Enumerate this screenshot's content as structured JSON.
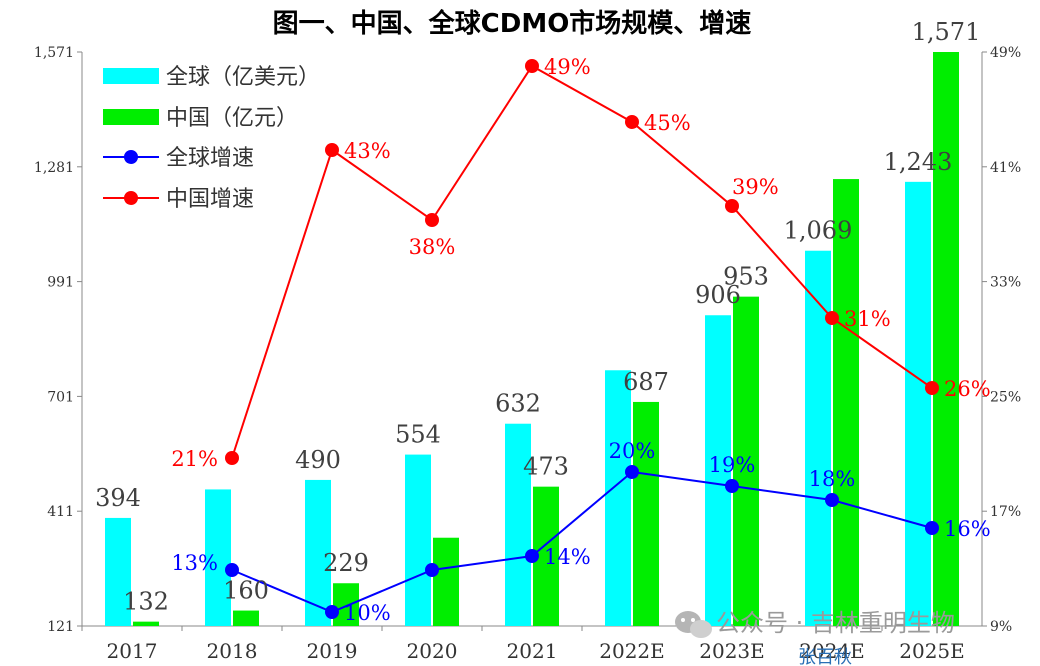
{
  "chart_data": {
    "type": "bar",
    "title": "图一、中国、全球CDMO市场规模、增速",
    "categories": [
      "2017",
      "2018",
      "2019",
      "2020",
      "2021",
      "2022E",
      "2023E",
      "2024E",
      "2025E"
    ],
    "series": [
      {
        "name": "全球（亿美元）",
        "type": "bar",
        "axis": "left",
        "color": "#00FFFF",
        "values": [
          394,
          466,
          490,
          554,
          632,
          767,
          906,
          1069,
          1243
        ],
        "labels": [
          "394",
          "",
          "490",
          "554",
          "632",
          "",
          "906",
          "1,069",
          "1,243"
        ]
      },
      {
        "name": "中国（亿元）",
        "type": "bar",
        "axis": "left",
        "color": "#00EE00",
        "values": [
          132,
          160,
          229,
          344,
          473,
          687,
          953,
          1250,
          1571
        ],
        "labels": [
          "132",
          "160",
          "229",
          "",
          "473",
          "687",
          "953",
          "",
          "1,571"
        ]
      },
      {
        "name": "全球增速",
        "type": "line",
        "axis": "right",
        "color": "#0000FF",
        "values": [
          null,
          13,
          10,
          13,
          14,
          20,
          19,
          18,
          16
        ],
        "labels": [
          "",
          "13%",
          "10%",
          "",
          "14%",
          "20%",
          "19%",
          "18%",
          "16%"
        ]
      },
      {
        "name": "中国增速",
        "type": "line",
        "axis": "right",
        "color": "#FF0000",
        "values": [
          null,
          21,
          43,
          38,
          49,
          45,
          39,
          31,
          26
        ],
        "labels": [
          "",
          "21%",
          "43%",
          "38%",
          "49%",
          "45%",
          "39%",
          "31%",
          "26%"
        ]
      }
    ],
    "y_left": {
      "ylim": [
        121,
        1571
      ],
      "ticks": [
        "121",
        "411",
        "701",
        "991",
        "1,281",
        "1,571"
      ]
    },
    "y_right": {
      "ylim": [
        9,
        50
      ],
      "ticks": [
        "9%",
        "17%",
        "25%",
        "33%",
        "41%",
        "49%"
      ]
    },
    "legend": "top-left",
    "grid": false
  },
  "watermark": "公众号 · 吉林重明生物",
  "author": "张百秋"
}
